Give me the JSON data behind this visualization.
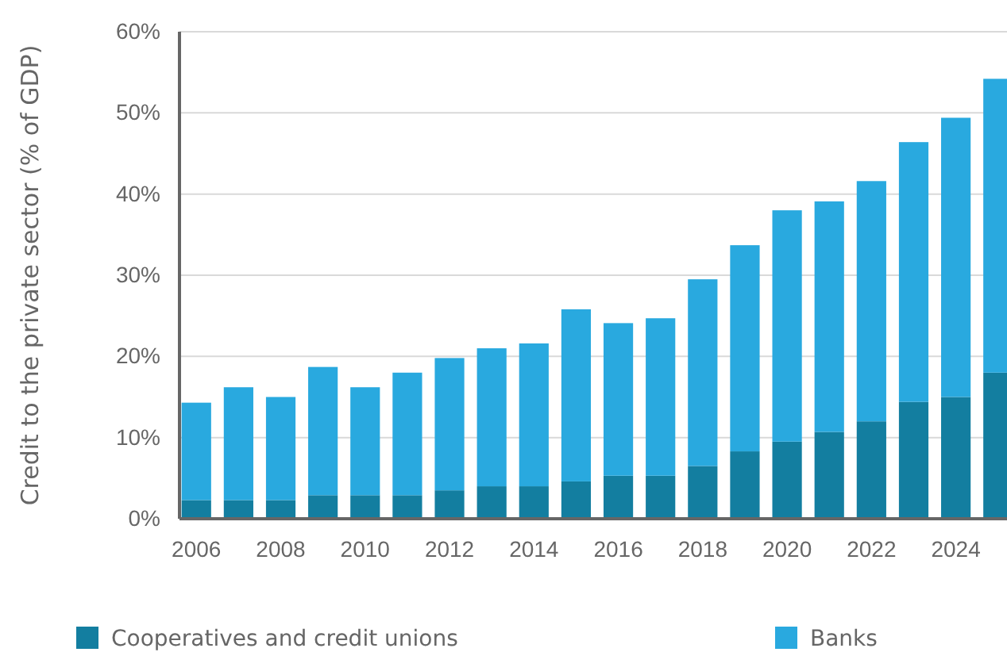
{
  "chart_data": {
    "type": "bar",
    "ylabel": "Credit to the private sector  (% of GDP)",
    "categories": [
      "2006",
      null,
      "2008",
      null,
      "2010",
      null,
      "2012",
      null,
      "2014",
      null,
      "2016",
      null,
      "2018",
      null,
      "2020",
      null,
      "2022",
      null,
      "2024",
      null
    ],
    "series": [
      {
        "name": "Cooperatives and credit unions",
        "color": "#137ea0",
        "values": [
          2.3,
          2.3,
          2.3,
          2.9,
          2.9,
          2.9,
          3.5,
          4.0,
          4.0,
          4.6,
          5.3,
          5.3,
          6.5,
          8.3,
          9.5,
          10.7,
          12.0,
          14.4,
          15.0,
          18.0
        ]
      },
      {
        "name": "Banks",
        "color": "#29a9df",
        "values": [
          12.0,
          13.9,
          12.7,
          15.8,
          13.3,
          15.1,
          16.3,
          17.0,
          17.6,
          21.2,
          18.8,
          19.4,
          23.0,
          25.4,
          28.5,
          28.4,
          29.6,
          32.0,
          34.4,
          36.2
        ]
      }
    ],
    "stacked": true,
    "ylim": [
      0,
      60
    ],
    "yticks": [
      {
        "value": 0,
        "label": "0%"
      },
      {
        "value": 10,
        "label": "10%"
      },
      {
        "value": 20,
        "label": "20%"
      },
      {
        "value": 30,
        "label": "30%"
      },
      {
        "value": 40,
        "label": "40%"
      },
      {
        "value": 50,
        "label": "50%"
      },
      {
        "value": 60,
        "label": "60%"
      }
    ],
    "grid": "y",
    "legend": "bottom"
  }
}
